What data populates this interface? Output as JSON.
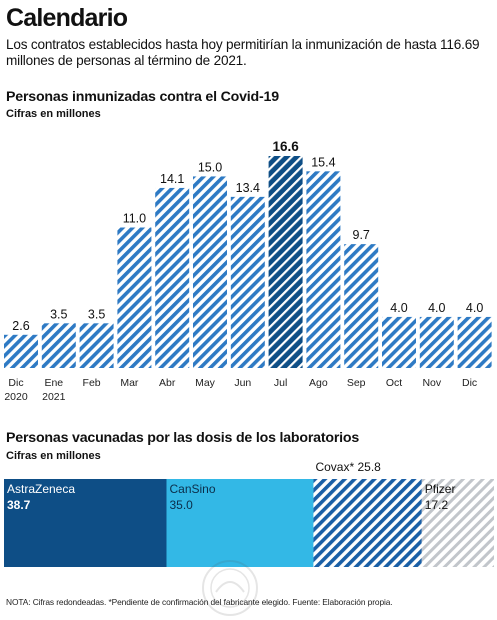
{
  "header": {
    "title": "Calendario",
    "subtitle": "Los contratos establecidos hasta hoy permitirían la inmunización de hasta 116.69 millones de personas al término de 2021."
  },
  "colors": {
    "dark_blue": "#0e4e86",
    "hatch_blue": "#2e7ac4",
    "cyan": "#33b8e6",
    "gray_hatch": "#b7bcc2"
  },
  "chart_data": [
    {
      "type": "bar",
      "title": "Personas inmunizadas contra el Covid-19",
      "subtitle": "Cifras en millones",
      "categories": [
        "Dic 2020",
        "Ene 2021",
        "Feb",
        "Mar",
        "Abr",
        "May",
        "Jun",
        "Jul",
        "Ago",
        "Sep",
        "Oct",
        "Nov",
        "Dic"
      ],
      "category_lines": [
        [
          "Dic",
          "2020"
        ],
        [
          "Ene",
          "2021"
        ],
        [
          "Feb"
        ],
        [
          "Mar"
        ],
        [
          "Abr"
        ],
        [
          "May"
        ],
        [
          "Jun"
        ],
        [
          "Jul"
        ],
        [
          "Ago"
        ],
        [
          "Sep"
        ],
        [
          "Oct"
        ],
        [
          "Nov"
        ],
        [
          "Dic"
        ]
      ],
      "values": [
        2.6,
        3.5,
        3.5,
        11.0,
        14.1,
        15.0,
        13.4,
        16.6,
        15.4,
        9.7,
        4.0,
        4.0,
        4.0
      ],
      "value_labels": [
        "2.6",
        "3.5",
        "3.5",
        "11.0",
        "14.1",
        "15.0",
        "13.4",
        "16.6",
        "15.4",
        "9.7",
        "4.0",
        "4.0",
        "4.0"
      ],
      "highlight_index": 7,
      "ylim": [
        0,
        16.6
      ],
      "grid": false
    },
    {
      "type": "bar",
      "stacked": true,
      "title": "Personas vacunadas por las dosis  de los laboratorios",
      "subtitle": "Cifras en millones",
      "series": [
        {
          "name": "AstraZeneca",
          "value": 38.7,
          "label": "38.7",
          "fill": "solid-dark"
        },
        {
          "name": "CanSino",
          "value": 35.0,
          "label": "35.0",
          "fill": "solid-cyan"
        },
        {
          "name": "Covax*",
          "value": 25.8,
          "label": "25.8",
          "fill": "hatch-blue"
        },
        {
          "name": "Pfizer",
          "value": 17.2,
          "label": "17.2",
          "fill": "hatch-gray"
        }
      ]
    }
  ],
  "footer": {
    "note": "NOTA: Cifras redondeadas. *Pendiente de confirmación del fabricante elegido. Fuente: Elaboración propia."
  }
}
